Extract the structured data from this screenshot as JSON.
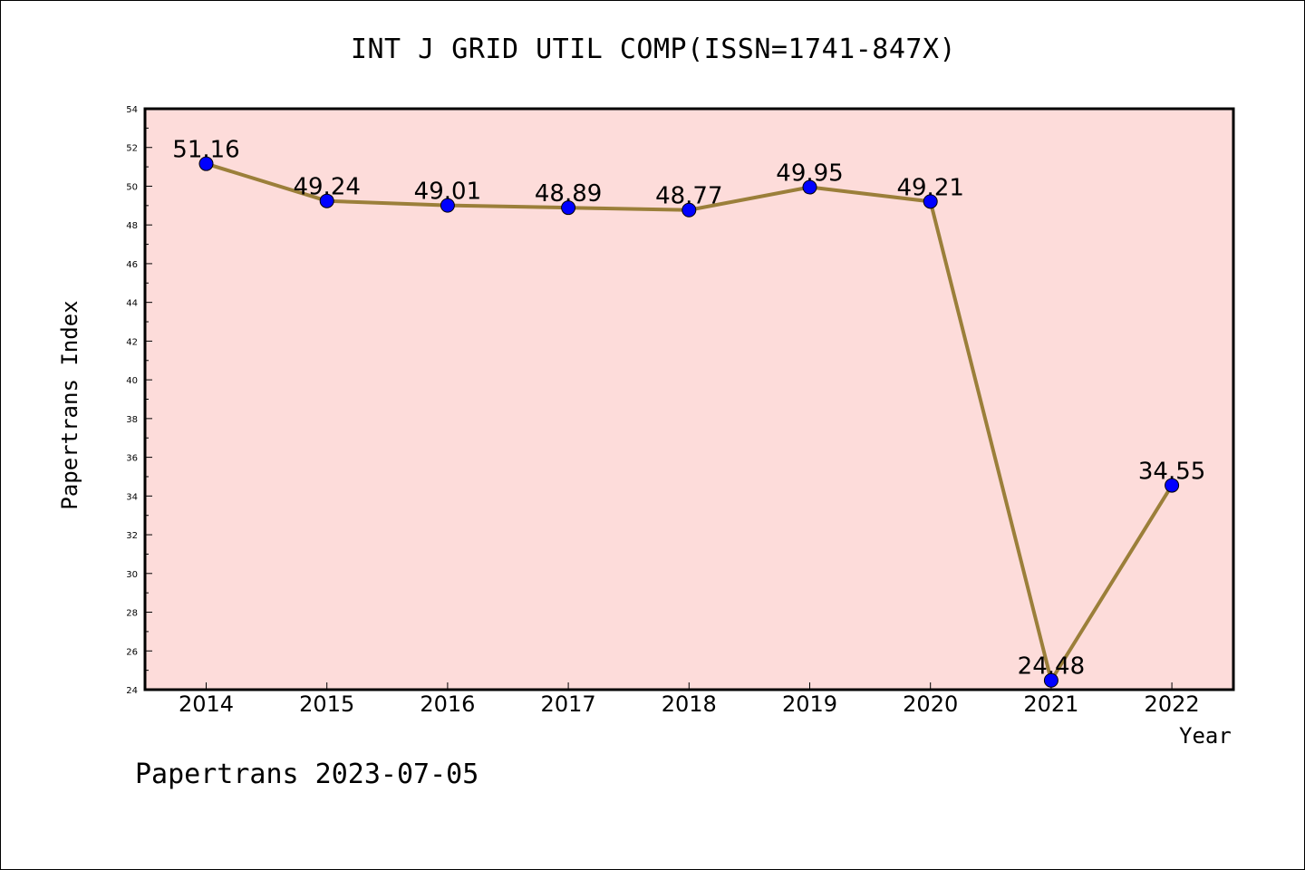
{
  "chart_data": {
    "type": "line",
    "title": "INT J GRID UTIL COMP(ISSN=1741-847X)",
    "xlabel": "Year",
    "ylabel": "Papertrans Index",
    "categories": [
      "2014",
      "2015",
      "2016",
      "2017",
      "2018",
      "2019",
      "2020",
      "2021",
      "2022"
    ],
    "series": [
      {
        "values": [
          51.16,
          49.24,
          49.01,
          48.89,
          48.77,
          49.95,
          49.21,
          24.48,
          34.55
        ],
        "labels": [
          "51.16",
          "49.24",
          "49.01",
          "48.89",
          "48.77",
          "49.95",
          "49.21",
          "24.48",
          "34.55"
        ]
      }
    ],
    "ylim": [
      24,
      54
    ],
    "yticks": [
      "24",
      "26",
      "28",
      "30",
      "32",
      "34",
      "36",
      "38",
      "40",
      "42",
      "44",
      "46",
      "48",
      "50",
      "52",
      "54"
    ],
    "grid": false,
    "colors": {
      "plot_background": "#fddcda",
      "line": "#9b7f3a",
      "marker": "#0000ff"
    }
  },
  "footer": "Papertrans 2023-07-05"
}
